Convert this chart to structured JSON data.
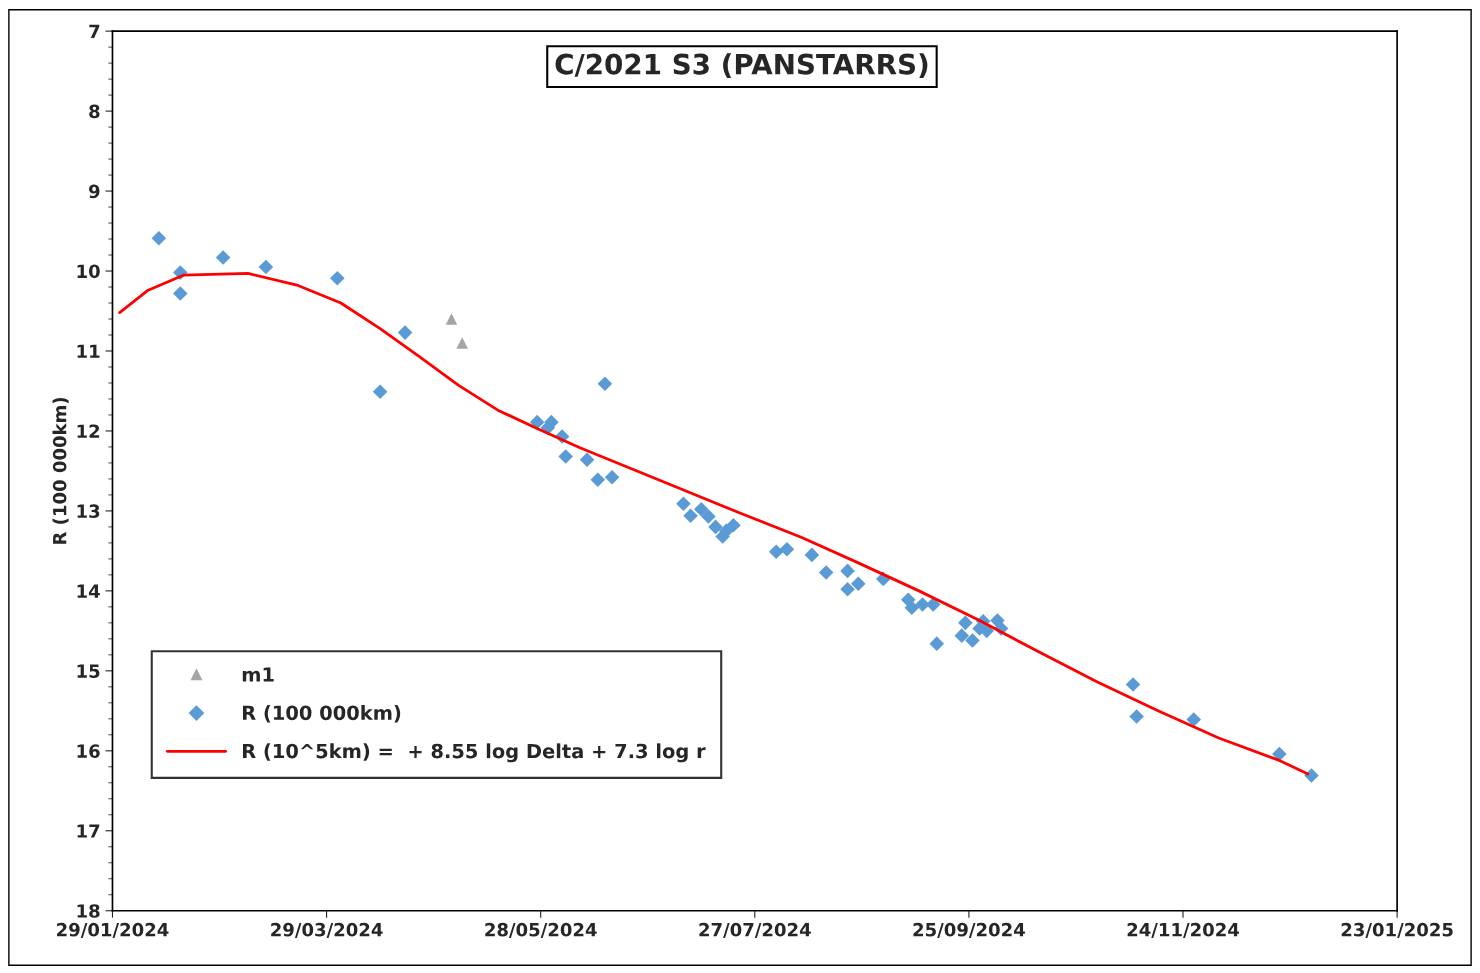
{
  "chart_data": {
    "type": "scatter",
    "title": "C/2021 S3 (PANSTARRS)",
    "ylabel": "R (100 000km)",
    "xlim": [
      "2024-01-29",
      "2025-01-23"
    ],
    "xticks": [
      {
        "value": "2024-01-29",
        "label": "29/01/2024"
      },
      {
        "value": "2024-03-29",
        "label": "29/03/2024"
      },
      {
        "value": "2024-05-28",
        "label": "28/05/2024"
      },
      {
        "value": "2024-07-27",
        "label": "27/07/2024"
      },
      {
        "value": "2024-09-25",
        "label": "25/09/2024"
      },
      {
        "value": "2024-11-24",
        "label": "24/11/2024"
      },
      {
        "value": "2025-01-23",
        "label": "23/01/2025"
      }
    ],
    "ylim": [
      18,
      7
    ],
    "yticks": [
      7,
      8,
      9,
      10,
      11,
      12,
      13,
      14,
      15,
      16,
      17,
      18
    ],
    "grid": false,
    "legend": "bottom left",
    "series": [
      {
        "name": "m1",
        "marker": "triangle",
        "color": "#a5a5a5",
        "x": [
          "2024-05-03",
          "2024-05-06"
        ],
        "values": [
          10.6,
          10.9
        ]
      },
      {
        "name": "R (100 000km)",
        "marker": "diamond",
        "color": "#5b9bd5",
        "x": [
          "2024-02-11",
          "2024-02-17",
          "2024-02-17",
          "2024-02-29",
          "2024-03-12",
          "2024-04-01",
          "2024-04-13",
          "2024-04-20",
          "2024-05-27",
          "2024-05-30",
          "2024-05-31",
          "2024-06-03",
          "2024-06-04",
          "2024-06-10",
          "2024-06-13",
          "2024-06-15",
          "2024-06-17",
          "2024-07-07",
          "2024-07-09",
          "2024-07-12",
          "2024-07-14",
          "2024-07-16",
          "2024-07-18",
          "2024-07-19",
          "2024-07-21",
          "2024-08-02",
          "2024-08-05",
          "2024-08-12",
          "2024-08-16",
          "2024-08-22",
          "2024-08-22",
          "2024-08-25",
          "2024-09-01",
          "2024-09-08",
          "2024-09-09",
          "2024-09-12",
          "2024-09-15",
          "2024-09-16",
          "2024-09-23",
          "2024-09-24",
          "2024-09-26",
          "2024-09-28",
          "2024-09-29",
          "2024-09-30",
          "2024-10-03",
          "2024-10-04",
          "2024-11-10",
          "2024-11-11",
          "2024-11-27",
          "2024-12-21",
          "2024-12-30"
        ],
        "values": [
          9.59,
          10.02,
          10.28,
          9.83,
          9.95,
          10.09,
          11.51,
          10.77,
          11.89,
          11.96,
          11.89,
          12.07,
          12.32,
          12.36,
          12.61,
          11.41,
          12.58,
          12.91,
          13.06,
          12.98,
          13.07,
          13.2,
          13.32,
          13.25,
          13.18,
          13.51,
          13.48,
          13.55,
          13.77,
          13.75,
          13.98,
          13.91,
          13.85,
          14.11,
          14.21,
          14.17,
          14.17,
          14.66,
          14.56,
          14.4,
          14.62,
          14.47,
          14.38,
          14.5,
          14.37,
          14.47,
          15.17,
          15.57,
          15.61,
          16.04,
          16.31
        ]
      },
      {
        "name": "R (10^5km) =  + 8.55 log Delta + 7.3 log r",
        "type": "line",
        "marker": "none",
        "line_style": "solid",
        "color": "#ff0000",
        "x": [
          "2024-01-31",
          "2024-02-08",
          "2024-02-18",
          "2024-03-07",
          "2024-03-21",
          "2024-04-02",
          "2024-04-13",
          "2024-04-24",
          "2024-05-05",
          "2024-05-16",
          "2024-05-27",
          "2024-06-08",
          "2024-06-19",
          "2024-07-06",
          "2024-07-23",
          "2024-08-09",
          "2024-08-25",
          "2024-09-11",
          "2024-09-28",
          "2024-10-14",
          "2024-10-31",
          "2024-11-17",
          "2024-12-04",
          "2024-12-21",
          "2024-12-29"
        ],
        "values": [
          10.52,
          10.24,
          10.05,
          10.03,
          10.18,
          10.4,
          10.72,
          11.07,
          11.43,
          11.74,
          11.97,
          12.21,
          12.41,
          12.72,
          13.03,
          13.33,
          13.65,
          14.0,
          14.37,
          14.75,
          15.14,
          15.5,
          15.84,
          16.12,
          16.29
        ]
      }
    ]
  }
}
